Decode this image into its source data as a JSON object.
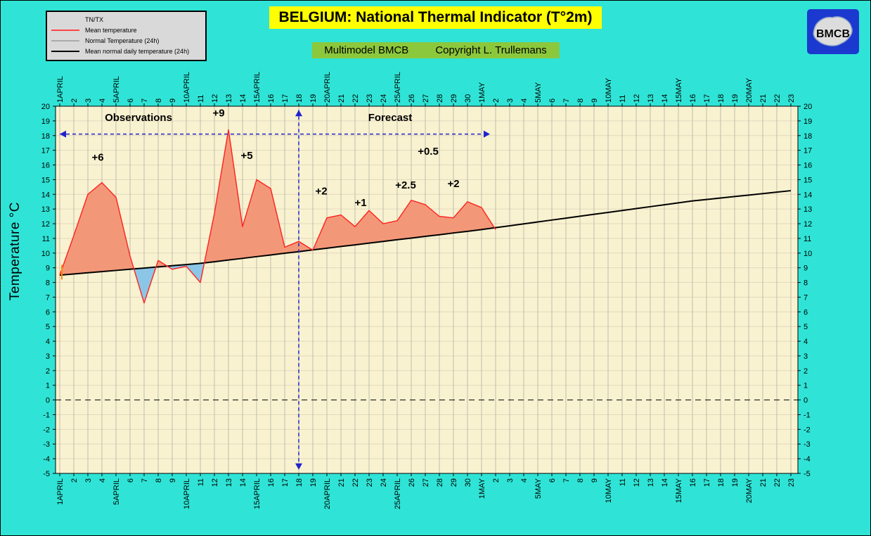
{
  "page": {
    "background": "#2FE4D6"
  },
  "header": {
    "title": "BELGIUM: National Thermal Indicator (T°2m)",
    "subtitle_model": "Multimodel BMCB",
    "subtitle_copyright": "Copyright L. Trullemans"
  },
  "legend": {
    "items": [
      {
        "label": "TN/TX",
        "color": null
      },
      {
        "label": "Mean temperature",
        "color": "#FF4444"
      },
      {
        "label": "Normal Temperature (24h)",
        "color": "#AAAAAA"
      },
      {
        "label": "Mean normal daily temperature (24h)",
        "color": "#000000"
      }
    ]
  },
  "logo": {
    "text": "BMCB"
  },
  "y_axis_label": "Temperature °C",
  "chart_data": {
    "type": "line",
    "title": "BELGIUM: National Thermal Indicator (T°2m)",
    "ylabel": "Temperature °C",
    "ylim": [
      -5,
      20
    ],
    "y_ticks": [
      20,
      19,
      18,
      17,
      16,
      15,
      14,
      13,
      12,
      11,
      10,
      9,
      8,
      7,
      6,
      5,
      4,
      3,
      2,
      1,
      0,
      -1,
      -2,
      -3,
      -4,
      -5
    ],
    "x_labels": [
      "1APRIL",
      "2",
      "3",
      "4",
      "5APRIL",
      "6",
      "7",
      "8",
      "9",
      "10APRIL",
      "11",
      "12",
      "13",
      "14",
      "15APRIL",
      "16",
      "17",
      "18",
      "19",
      "20APRIL",
      "21",
      "22",
      "23",
      "24",
      "25APRIL",
      "26",
      "27",
      "28",
      "29",
      "30",
      "1MAY",
      "2",
      "3",
      "4",
      "5MAY",
      "6",
      "7",
      "8",
      "9",
      "10MAY",
      "11",
      "12",
      "13",
      "14",
      "15MAY",
      "16",
      "17",
      "18",
      "19",
      "20MAY",
      "21",
      "22",
      "23"
    ],
    "series": [
      {
        "name": "Mean temperature",
        "color": "#FF2020",
        "width": 1.4,
        "values": [
          8.5,
          11.2,
          14.0,
          14.8,
          13.8,
          9.8,
          6.6,
          9.5,
          8.9,
          9.1,
          8.0,
          12.7,
          18.4,
          11.8,
          15.0,
          14.4,
          10.4,
          10.8,
          10.2,
          12.4,
          12.6,
          11.8,
          12.9,
          12.0,
          12.2,
          13.6,
          13.3,
          12.5,
          12.4,
          13.5,
          13.1,
          11.6
        ]
      },
      {
        "name": "Mean normal daily temperature (24h)",
        "color": "#000000",
        "width": 2,
        "values": [
          8.5,
          8.58,
          8.66,
          8.74,
          8.82,
          8.9,
          8.98,
          9.06,
          9.14,
          9.22,
          9.3,
          9.41,
          9.53,
          9.64,
          9.76,
          9.87,
          9.99,
          10.1,
          10.22,
          10.33,
          10.45,
          10.56,
          10.68,
          10.79,
          10.91,
          11.02,
          11.14,
          11.25,
          11.37,
          11.48,
          11.6,
          11.73,
          11.86,
          11.99,
          12.12,
          12.25,
          12.38,
          12.51,
          12.64,
          12.77,
          12.9,
          13.03,
          13.16,
          13.29,
          13.42,
          13.55,
          13.65,
          13.75,
          13.85,
          13.95,
          14.05,
          14.15,
          14.25
        ]
      }
    ],
    "fills": {
      "above_color": "#F29878",
      "below_color": "#8CC6E6"
    },
    "colors": {
      "plot_bg": "#F9F2D0",
      "v_grid": "#BDBDAD",
      "h_grid": "#E2D8BE"
    },
    "zero_line_temp": 0,
    "start_tick": {
      "day": 0.15,
      "temp_from": 8.2,
      "temp_to": 9.2,
      "color": "#FF8C00"
    },
    "annotations": {
      "color": "#FF8C00",
      "items": [
        {
          "text": "+6",
          "day": 2.7,
          "temp": 16.3
        },
        {
          "text": "+9",
          "day": 11.3,
          "temp": 19.3
        },
        {
          "text": "+5",
          "day": 13.3,
          "temp": 16.4
        },
        {
          "text": "+2",
          "day": 18.6,
          "temp": 14.0
        },
        {
          "text": "+1",
          "day": 21.4,
          "temp": 13.2
        },
        {
          "text": "+2.5",
          "day": 24.6,
          "temp": 14.4
        },
        {
          "text": "+2",
          "day": 28.0,
          "temp": 14.5
        },
        {
          "text": "+0.5",
          "day": 26.2,
          "temp": 16.7
        }
      ]
    },
    "markers": {
      "color": "#2222CC",
      "divider_day": 17,
      "divider_top_temp": 19.75,
      "divider_bottom_temp": -4.75,
      "arrow_temp": 18.1,
      "arrow_start_day": 0,
      "arrow_end_day": 30.6,
      "labels_temp": 19.0,
      "observations_label": "Observations",
      "observations_day": 5.6,
      "forecast_label": "Forecast",
      "forecast_day": 23.5
    }
  }
}
